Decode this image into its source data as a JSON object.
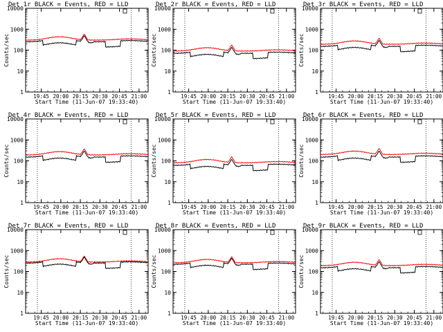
{
  "colors": {
    "events": "#000000",
    "lld": "#ff0000",
    "axis": "#000000",
    "background": "#ffffff"
  },
  "ylabel": "Counts/sec",
  "xlabel": "Start Time (11-Jun-07 19:33:40)",
  "x_ticks": [
    "19:45",
    "20:00",
    "20:15",
    "20:30",
    "20:45",
    "21:00"
  ],
  "x_tick_minutes": [
    0,
    15,
    30,
    45,
    60,
    75
  ],
  "y_ticks": [
    "1",
    "10",
    "100",
    "1000",
    "10000"
  ],
  "y_tick_values": [
    1,
    10,
    100,
    1000,
    10000
  ],
  "panels": [
    {
      "title": "Det 1r BLACK = Events, RED = LLD",
      "events_level": 250,
      "lld_level": 300
    },
    {
      "title": "Det 2r BLACK = Events, RED = LLD",
      "events_level": 70,
      "lld_level": 90
    },
    {
      "title": "Det 3r BLACK = Events, RED = LLD",
      "events_level": 150,
      "lld_level": 190
    },
    {
      "title": "Det 4r BLACK = Events, RED = LLD",
      "events_level": 150,
      "lld_level": 190
    },
    {
      "title": "Det 5r BLACK = Events, RED = LLD",
      "events_level": 60,
      "lld_level": 80
    },
    {
      "title": "Det 6r BLACK = Events, RED = LLD",
      "events_level": 150,
      "lld_level": 200
    },
    {
      "title": "Det 7r BLACK = Events, RED = LLD",
      "events_level": 250,
      "lld_level": 280
    },
    {
      "title": "Det 8r BLACK = Events, RED = LLD",
      "events_level": 220,
      "lld_level": 260
    },
    {
      "title": "Det 9r BLACK = Events, RED = LLD",
      "events_level": 150,
      "lld_level": 190
    }
  ],
  "chart_data": {
    "type": "line",
    "y_scale": "log",
    "ylim": [
      1,
      10000
    ],
    "x_unit": "minutes after 19:45",
    "xlim": [
      -12,
      82
    ],
    "grid": false,
    "time_markers": [
      -3,
      69
    ],
    "series": [
      {
        "name": "BLACK = Events"
      },
      {
        "name": "RED = LLD"
      }
    ]
  }
}
